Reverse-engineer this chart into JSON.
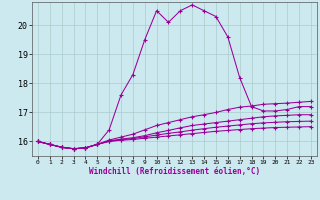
{
  "xlabel": "Windchill (Refroidissement éolien,°C)",
  "bg_color": "#cde9f0",
  "grid_color": "#aacccc",
  "line_color": "#990099",
  "xlim": [
    -0.5,
    23.5
  ],
  "ylim": [
    15.5,
    20.8
  ],
  "yticks": [
    16,
    17,
    18,
    19,
    20
  ],
  "xticks": [
    0,
    1,
    2,
    3,
    4,
    5,
    6,
    7,
    8,
    9,
    10,
    11,
    12,
    13,
    14,
    15,
    16,
    17,
    18,
    19,
    20,
    21,
    22,
    23
  ],
  "series": [
    [
      16.0,
      15.9,
      15.8,
      15.75,
      15.78,
      15.9,
      16.4,
      17.6,
      18.3,
      19.5,
      20.5,
      20.1,
      20.5,
      20.7,
      20.5,
      20.3,
      19.6,
      18.2,
      17.2,
      17.05,
      17.05,
      17.1,
      17.2,
      17.2
    ],
    [
      16.0,
      15.9,
      15.8,
      15.75,
      15.78,
      15.9,
      16.05,
      16.15,
      16.25,
      16.4,
      16.55,
      16.65,
      16.75,
      16.85,
      16.92,
      17.0,
      17.1,
      17.18,
      17.22,
      17.28,
      17.3,
      17.32,
      17.35,
      17.38
    ],
    [
      16.0,
      15.9,
      15.8,
      15.75,
      15.78,
      15.9,
      16.02,
      16.08,
      16.13,
      16.2,
      16.3,
      16.38,
      16.47,
      16.55,
      16.6,
      16.65,
      16.7,
      16.75,
      16.8,
      16.85,
      16.88,
      16.9,
      16.92,
      16.92
    ],
    [
      16.0,
      15.9,
      15.8,
      15.75,
      15.78,
      15.9,
      16.01,
      16.06,
      16.1,
      16.16,
      16.22,
      16.28,
      16.33,
      16.39,
      16.44,
      16.49,
      16.53,
      16.57,
      16.61,
      16.64,
      16.66,
      16.68,
      16.69,
      16.7
    ],
    [
      16.0,
      15.9,
      15.8,
      15.75,
      15.78,
      15.9,
      16.0,
      16.04,
      16.07,
      16.11,
      16.15,
      16.19,
      16.23,
      16.27,
      16.31,
      16.35,
      16.38,
      16.41,
      16.44,
      16.46,
      16.48,
      16.49,
      16.5,
      16.51
    ]
  ]
}
